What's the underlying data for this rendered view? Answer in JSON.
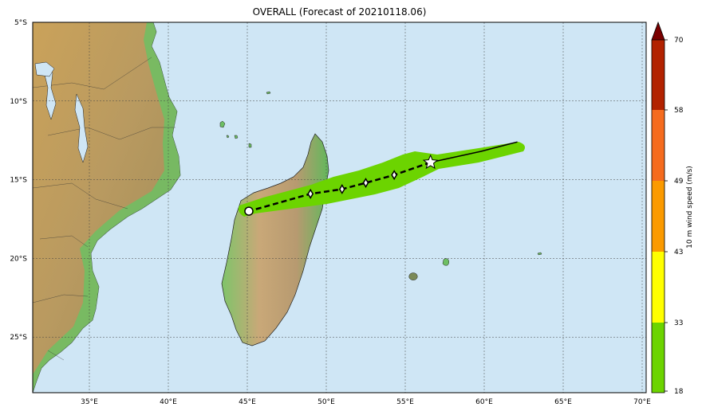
{
  "title": "OVERALL (Forecast of 20210118.06)",
  "map": {
    "lon_labels": [
      "35°E",
      "40°E",
      "45°E",
      "50°E",
      "55°E",
      "60°E",
      "65°E",
      "70°E"
    ],
    "lat_labels": [
      "5°S",
      "10°S",
      "15°S",
      "20°S",
      "25°S"
    ],
    "ocean_color": "#cfe6f5",
    "grid_lines": true
  },
  "track": {
    "analysis_position": {
      "lon": 56.6,
      "lat": -13.9
    },
    "past_track": [
      [
        56.6,
        -13.9
      ],
      [
        59.8,
        -13.2
      ],
      [
        62.1,
        -12.6
      ]
    ],
    "forecast_points": [
      [
        54.3,
        -14.7
      ],
      [
        52.5,
        -15.2
      ],
      [
        51.0,
        -15.6
      ],
      [
        49.0,
        -15.9
      ]
    ],
    "final_position": {
      "lon": 45.1,
      "lat": -17.0
    },
    "wind_swath_color": "#6cd400"
  },
  "colorbar": {
    "label": "10 m wind speed (m/s)",
    "ticks": [
      "70",
      "58",
      "49",
      "43",
      "33",
      "18"
    ],
    "colors": [
      "#b22200",
      "#f56b1e",
      "#fb9a00",
      "#ffff00",
      "#6cd400"
    ]
  }
}
